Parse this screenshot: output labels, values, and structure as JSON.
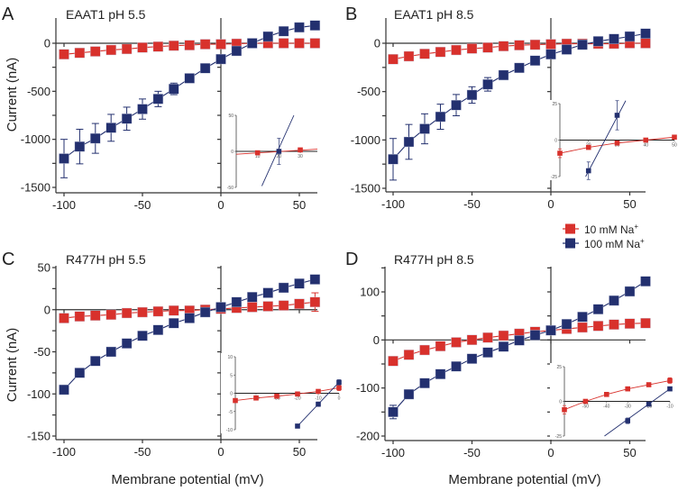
{
  "colors": {
    "low_na": "#d8312c",
    "high_na": "#23306f",
    "axis": "#222222"
  },
  "legend": {
    "items": [
      {
        "label": "10 mM  Na",
        "sup": "+",
        "series": "low_na"
      },
      {
        "label": "100 mM  Na",
        "sup": "+",
        "series": "high_na"
      }
    ]
  },
  "shared_labels": {
    "ylabel": "Current (nA)",
    "xlabel": "Membrane potential (mV)"
  },
  "chart_data": [
    {
      "type": "line",
      "panel": "A",
      "title": "EAAT1 pH 5.5",
      "xlabel": "Membrane potential (mV)",
      "ylabel": "Current (nA)",
      "xlim": [
        -105,
        60
      ],
      "ylim": [
        -1550,
        220
      ],
      "xticks": [
        -100,
        -50,
        0,
        50
      ],
      "yticks": [
        0,
        -500,
        -1000,
        -1500
      ],
      "x": [
        -100,
        -90,
        -80,
        -70,
        -60,
        -50,
        -40,
        -30,
        -20,
        -10,
        0,
        10,
        20,
        30,
        40,
        50,
        60
      ],
      "series": [
        {
          "name": "10 mM Na+",
          "key": "low_na",
          "values": [
            -115,
            -100,
            -85,
            -70,
            -60,
            -45,
            -35,
            -25,
            -20,
            -10,
            -10,
            -5,
            0,
            0,
            0,
            0,
            0
          ],
          "errors": [
            0,
            0,
            0,
            0,
            0,
            0,
            0,
            0,
            0,
            0,
            0,
            0,
            0,
            0,
            0,
            0,
            0
          ]
        },
        {
          "name": "100 mM Na+",
          "key": "high_na",
          "values": [
            -1200,
            -1075,
            -990,
            -880,
            -785,
            -685,
            -580,
            -475,
            -365,
            -260,
            -165,
            -80,
            0,
            70,
            125,
            165,
            185
          ],
          "errors": [
            200,
            180,
            155,
            140,
            120,
            105,
            80,
            60,
            0,
            0,
            0,
            0,
            0,
            0,
            0,
            0,
            0
          ]
        }
      ],
      "inset": {
        "xlim": [
          0,
          38
        ],
        "ylim": [
          -50,
          50
        ],
        "xticks": [
          10,
          20,
          30
        ],
        "yticks": [
          50,
          0,
          -50
        ],
        "series": [
          {
            "key": "low_na",
            "points": [
              [
                10,
                -2
              ],
              [
                30,
                2
              ]
            ],
            "errors": [
              0,
              0
            ],
            "line": [
              [
                0,
                -4
              ],
              [
                38,
                3
              ]
            ]
          },
          {
            "key": "high_na",
            "points": [
              [
                20,
                0
              ]
            ],
            "errors": [
              18
            ],
            "line": [
              [
                12,
                -48
              ],
              [
                27,
                50
              ]
            ]
          }
        ]
      }
    },
    {
      "type": "line",
      "panel": "B",
      "title": "EAAT1 pH 8.5",
      "xlabel": "Membrane potential (mV)",
      "ylabel": "Current (nA)",
      "xlim": [
        -105,
        60
      ],
      "ylim": [
        -1550,
        220
      ],
      "xticks": [
        -100,
        -50,
        0,
        50
      ],
      "yticks": [
        0,
        -500,
        -1000,
        -1500
      ],
      "x": [
        -100,
        -90,
        -80,
        -70,
        -60,
        -50,
        -40,
        -30,
        -20,
        -10,
        0,
        10,
        20,
        30,
        40,
        50,
        60
      ],
      "series": [
        {
          "name": "10 mM Na+",
          "key": "low_na",
          "values": [
            -165,
            -135,
            -110,
            -90,
            -70,
            -55,
            -45,
            -30,
            -20,
            -15,
            -10,
            -5,
            -5,
            -5,
            -5,
            0,
            0
          ],
          "errors": [
            0,
            0,
            0,
            0,
            0,
            0,
            0,
            0,
            0,
            0,
            0,
            0,
            0,
            0,
            0,
            0,
            0
          ]
        },
        {
          "name": "100 mM Na+",
          "key": "high_na",
          "values": [
            -1200,
            -1020,
            -885,
            -760,
            -640,
            -535,
            -425,
            -330,
            -255,
            -180,
            -115,
            -65,
            -15,
            20,
            45,
            70,
            100
          ],
          "errors": [
            215,
            180,
            155,
            130,
            110,
            85,
            70,
            0,
            0,
            0,
            0,
            0,
            0,
            0,
            0,
            0,
            0
          ]
        }
      ],
      "inset": {
        "xlim": [
          10,
          50
        ],
        "ylim": [
          -25,
          25
        ],
        "xticks": [
          20,
          30,
          40,
          50
        ],
        "yticks": [
          25,
          0,
          -25
        ],
        "series": [
          {
            "key": "low_na",
            "points": [
              [
                10,
                -9
              ],
              [
                20,
                -5
              ],
              [
                30,
                -2
              ],
              [
                40,
                0
              ],
              [
                50,
                2
              ]
            ],
            "errors": [
              3,
              1,
              1,
              0,
              0
            ],
            "line": null
          },
          {
            "key": "high_na",
            "points": [
              [
                20,
                -21
              ],
              [
                30,
                17
              ]
            ],
            "errors": [
              6,
              10
            ],
            "line": [
              [
                19,
                -25
              ],
              [
                33,
                27
              ]
            ]
          }
        ]
      }
    },
    {
      "type": "line",
      "panel": "C",
      "title": "R477H pH 5.5",
      "xlabel": "Membrane potential (mV)",
      "ylabel": "Current (nA)",
      "xlim": [
        -105,
        60
      ],
      "ylim": [
        -155,
        50
      ],
      "xticks": [
        -100,
        -50,
        0,
        50
      ],
      "yticks": [
        50,
        0,
        -50,
        -100,
        -150
      ],
      "x": [
        -100,
        -90,
        -80,
        -70,
        -60,
        -50,
        -40,
        -30,
        -20,
        -10,
        0,
        10,
        20,
        30,
        40,
        50,
        60
      ],
      "series": [
        {
          "name": "10 mM Na+",
          "key": "low_na",
          "values": [
            -10,
            -8,
            -7,
            -6,
            -4,
            -3,
            -2,
            -1,
            -1,
            0,
            1,
            2,
            3,
            4,
            5,
            7,
            9
          ],
          "errors": [
            0,
            0,
            0,
            0,
            0,
            0,
            0,
            0,
            0,
            0,
            0,
            0,
            0,
            0,
            0,
            5,
            11
          ]
        },
        {
          "name": "100 mM Na+",
          "key": "high_na",
          "values": [
            -95,
            -75,
            -61,
            -50,
            -40,
            -31,
            -24,
            -16,
            -10,
            -3,
            3,
            9,
            15,
            20,
            26,
            31,
            36
          ],
          "errors": [
            0,
            0,
            0,
            0,
            0,
            0,
            0,
            0,
            0,
            0,
            0,
            0,
            0,
            0,
            0,
            0,
            0
          ]
        }
      ],
      "inset": {
        "xlim": [
          -50,
          0
        ],
        "ylim": [
          -10,
          10
        ],
        "xticks": [
          -40,
          -30,
          -20,
          -10,
          0
        ],
        "yticks": [
          10,
          5,
          0,
          -5,
          -10
        ],
        "series": [
          {
            "key": "low_na",
            "points": [
              [
                -50,
                -2
              ],
              [
                -40,
                -1.3
              ],
              [
                -30,
                -0.8
              ],
              [
                -20,
                -0.2
              ],
              [
                -10,
                0.5
              ],
              [
                0,
                1.5
              ]
            ],
            "errors": [
              0.5,
              0.4,
              0.3,
              0.2,
              0.3,
              0.8
            ],
            "line": null
          },
          {
            "key": "high_na",
            "points": [
              [
                -20,
                -9
              ],
              [
                -10,
                -3
              ],
              [
                0,
                3
              ]
            ],
            "errors": [
              0.5,
              0.6,
              0.7
            ],
            "line": [
              [
                -20,
                -9
              ],
              [
                0,
                3
              ]
            ]
          }
        ]
      }
    },
    {
      "type": "line",
      "panel": "D",
      "title": "R477H pH 8.5",
      "xlabel": "Membrane potential (mV)",
      "ylabel": "Current (nA)",
      "xlim": [
        -105,
        60
      ],
      "ylim": [
        -205,
        150
      ],
      "xticks": [
        -100,
        -50,
        0,
        50
      ],
      "yticks": [
        100,
        0,
        -100,
        -200
      ],
      "x": [
        -100,
        -90,
        -80,
        -70,
        -60,
        -50,
        -40,
        -30,
        -20,
        -10,
        0,
        10,
        20,
        30,
        40,
        50,
        60
      ],
      "series": [
        {
          "name": "10 mM Na+",
          "key": "low_na",
          "values": [
            -44,
            -31,
            -21,
            -13,
            -5,
            0,
            5,
            9,
            13,
            17,
            20,
            23,
            26,
            29,
            32,
            34,
            35
          ],
          "errors": [
            0,
            0,
            0,
            0,
            0,
            0,
            0,
            0,
            0,
            0,
            0,
            0,
            0,
            0,
            0,
            0,
            0
          ]
        },
        {
          "name": "100 mM Na+",
          "key": "high_na",
          "values": [
            -150,
            -113,
            -90,
            -71,
            -55,
            -39,
            -26,
            -14,
            -1,
            10,
            20,
            33,
            48,
            64,
            82,
            101,
            122
          ],
          "errors": [
            14,
            8,
            0,
            0,
            0,
            0,
            0,
            0,
            0,
            0,
            0,
            0,
            0,
            0,
            0,
            0,
            0
          ]
        }
      ],
      "inset": {
        "xlim": [
          -60,
          -10
        ],
        "ylim": [
          -25,
          25
        ],
        "xticks": [
          -50,
          -40,
          -30,
          -20,
          -10
        ],
        "yticks": [
          25,
          0,
          -25
        ],
        "series": [
          {
            "key": "low_na",
            "points": [
              [
                -60,
                -6
              ],
              [
                -50,
                0
              ],
              [
                -40,
                5
              ],
              [
                -30,
                9
              ],
              [
                -20,
                12
              ],
              [
                -10,
                15
              ]
            ],
            "errors": [
              3,
              1,
              1,
              1,
              1,
              2
            ],
            "line": null
          },
          {
            "key": "high_na",
            "points": [
              [
                -30,
                -14
              ],
              [
                -20,
                -2
              ],
              [
                -10,
                9
              ]
            ],
            "errors": [
              2,
              1,
              1
            ],
            "line": [
              [
                -41,
                -25
              ],
              [
                -10,
                9
              ]
            ]
          }
        ]
      }
    }
  ]
}
